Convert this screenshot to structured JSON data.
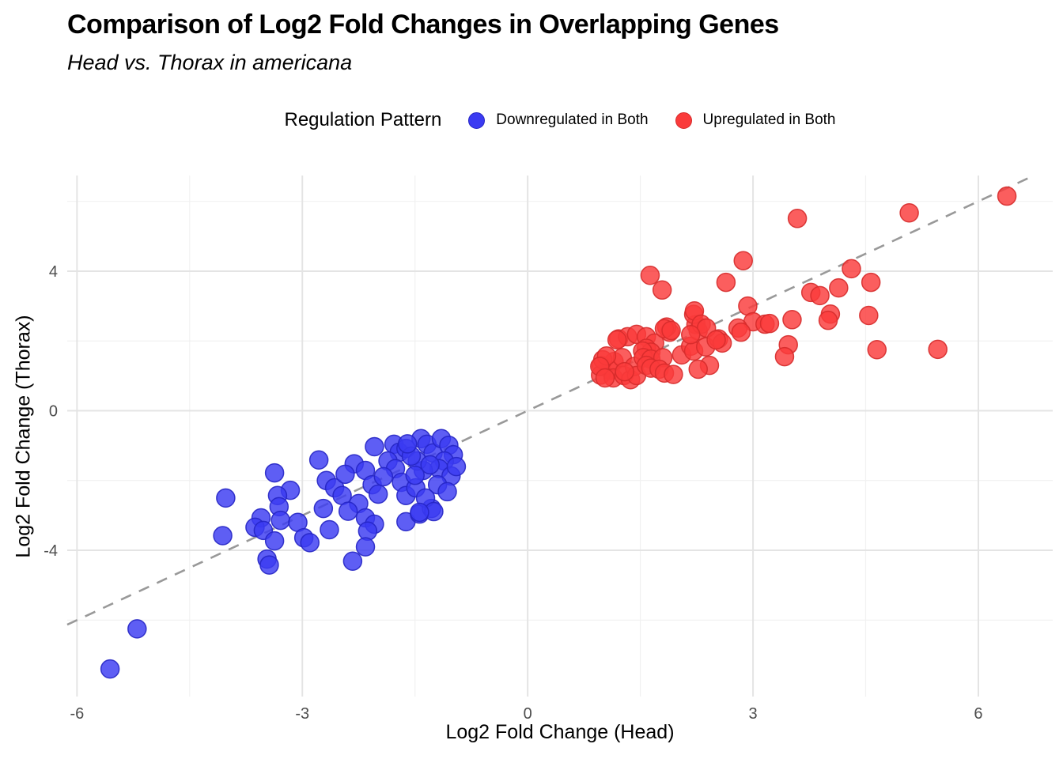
{
  "header": {
    "title": "Comparison of Log2 Fold Changes in Overlapping Genes",
    "subtitle": "Head vs. Thorax in americana"
  },
  "legend": {
    "title": "Regulation Pattern",
    "items": [
      {
        "label": "Downregulated in Both",
        "color": "#3B3BF2",
        "stroke": "#2525C4"
      },
      {
        "label": "Upregulated in Both",
        "color": "#FA3B3B",
        "stroke": "#D62B2B"
      }
    ]
  },
  "chart_data": {
    "type": "scatter",
    "title": "Comparison of Log2 Fold Changes in Overlapping Genes",
    "subtitle": "Head vs. Thorax in americana",
    "xlabel": "Log2 Fold Change (Head)",
    "ylabel": "Log2 Fold Change (Thorax)",
    "xlim": [
      -6.13,
      6.99
    ],
    "ylim": [
      -8.19,
      6.74
    ],
    "x_ticks": [
      -6,
      -3,
      0,
      3,
      6
    ],
    "y_ticks": [
      -4,
      0,
      4
    ],
    "x_minor_ticks": [
      -4.5,
      -1.5,
      1.5,
      4.5
    ],
    "y_minor_ticks": [
      -6,
      -2,
      2,
      6
    ],
    "grid": true,
    "legend_position": "top",
    "reference_line": {
      "type": "identity y = x",
      "style": "dashed",
      "color": "#999999"
    },
    "series": [
      {
        "name": "Downregulated in Both",
        "color": "#3B3BF2",
        "stroke": "#2525C4",
        "points": [
          [
            -5.56,
            -7.4
          ],
          [
            -5.2,
            -6.25
          ],
          [
            -4.02,
            -2.5
          ],
          [
            -4.06,
            -3.58
          ],
          [
            -3.37,
            -1.78
          ],
          [
            -3.16,
            -2.28
          ],
          [
            -3.33,
            -2.43
          ],
          [
            -3.31,
            -2.75
          ],
          [
            -3.55,
            -3.07
          ],
          [
            -3.63,
            -3.34
          ],
          [
            -3.52,
            -3.43
          ],
          [
            -3.29,
            -3.14
          ],
          [
            -3.06,
            -3.2
          ],
          [
            -3.37,
            -3.73
          ],
          [
            -3.47,
            -4.25
          ],
          [
            -3.44,
            -4.42
          ],
          [
            -2.78,
            -1.41
          ],
          [
            -2.68,
            -2.0
          ],
          [
            -2.98,
            -3.64
          ],
          [
            -2.9,
            -3.78
          ],
          [
            -2.72,
            -2.8
          ],
          [
            -2.64,
            -3.41
          ],
          [
            -2.57,
            -2.21
          ],
          [
            -2.47,
            -2.43
          ],
          [
            -2.04,
            -1.03
          ],
          [
            -2.31,
            -1.52
          ],
          [
            -2.43,
            -1.82
          ],
          [
            -2.16,
            -1.71
          ],
          [
            -2.07,
            -2.12
          ],
          [
            -1.99,
            -2.39
          ],
          [
            -2.25,
            -2.66
          ],
          [
            -2.39,
            -2.88
          ],
          [
            -2.16,
            -3.07
          ],
          [
            -2.04,
            -3.25
          ],
          [
            -2.13,
            -3.45
          ],
          [
            -2.16,
            -3.9
          ],
          [
            -2.33,
            -4.31
          ],
          [
            -1.78,
            -0.96
          ],
          [
            -1.71,
            -1.19
          ],
          [
            -1.62,
            -1.08
          ],
          [
            -1.86,
            -1.44
          ],
          [
            -1.76,
            -1.66
          ],
          [
            -1.92,
            -1.89
          ],
          [
            -1.68,
            -2.05
          ],
          [
            -1.62,
            -2.43
          ],
          [
            -1.49,
            -2.21
          ],
          [
            -1.62,
            -3.18
          ],
          [
            -1.44,
            -2.96
          ],
          [
            -1.28,
            -2.8
          ],
          [
            -1.42,
            -0.8
          ],
          [
            -1.34,
            -0.96
          ],
          [
            -1.26,
            -1.21
          ],
          [
            -1.15,
            -0.8
          ],
          [
            -1.05,
            -0.99
          ],
          [
            -0.99,
            -1.26
          ],
          [
            -1.11,
            -1.44
          ],
          [
            -1.18,
            -1.66
          ],
          [
            -1.02,
            -1.87
          ],
          [
            -0.95,
            -1.6
          ],
          [
            -1.2,
            -2.12
          ],
          [
            -1.07,
            -2.32
          ],
          [
            -1.39,
            -1.71
          ],
          [
            -1.47,
            -1.44
          ],
          [
            -1.36,
            -2.5
          ],
          [
            -1.25,
            -2.89
          ],
          [
            -1.44,
            -2.91
          ],
          [
            -1.55,
            -1.3
          ],
          [
            -1.3,
            -1.55
          ],
          [
            -1.6,
            -0.95
          ],
          [
            -1.5,
            -1.85
          ]
        ]
      },
      {
        "name": "Upregulated in Both",
        "color": "#FA3B3B",
        "stroke": "#D62B2B",
        "points": [
          [
            0.98,
            1.3
          ],
          [
            1.1,
            1.16
          ],
          [
            0.97,
            1.02
          ],
          [
            1.15,
            1.41
          ],
          [
            1.26,
            1.52
          ],
          [
            1.14,
            0.94
          ],
          [
            1.28,
            1.01
          ],
          [
            1.0,
            1.46
          ],
          [
            1.05,
            1.57
          ],
          [
            0.96,
            1.27
          ],
          [
            1.03,
            0.94
          ],
          [
            1.37,
            0.89
          ],
          [
            1.42,
            1.27
          ],
          [
            1.45,
            1.01
          ],
          [
            1.29,
            1.12
          ],
          [
            1.21,
            2.06
          ],
          [
            1.33,
            2.12
          ],
          [
            1.45,
            2.19
          ],
          [
            1.19,
            2.03
          ],
          [
            1.58,
            2.12
          ],
          [
            1.69,
            1.94
          ],
          [
            1.58,
            1.79
          ],
          [
            1.64,
            1.68
          ],
          [
            1.53,
            1.71
          ],
          [
            1.54,
            1.52
          ],
          [
            1.64,
            1.48
          ],
          [
            1.8,
            1.52
          ],
          [
            1.58,
            1.3
          ],
          [
            1.64,
            1.22
          ],
          [
            1.75,
            1.19
          ],
          [
            1.82,
            1.08
          ],
          [
            1.94,
            1.04
          ],
          [
            1.89,
            2.25
          ],
          [
            1.85,
            2.4
          ],
          [
            2.05,
            1.6
          ],
          [
            2.17,
            1.85
          ],
          [
            2.21,
            1.71
          ],
          [
            2.24,
            2.47
          ],
          [
            2.27,
            2.29
          ],
          [
            2.37,
            1.83
          ],
          [
            2.42,
            1.3
          ],
          [
            2.27,
            1.19
          ],
          [
            2.54,
            2.06
          ],
          [
            2.59,
            1.94
          ],
          [
            2.21,
            2.76
          ],
          [
            1.82,
            2.35
          ],
          [
            1.63,
            3.88
          ],
          [
            1.79,
            3.46
          ],
          [
            2.87,
            4.3
          ],
          [
            2.64,
            3.68
          ],
          [
            2.22,
            2.86
          ],
          [
            2.93,
            3.0
          ],
          [
            3.0,
            2.55
          ],
          [
            2.31,
            2.48
          ],
          [
            2.38,
            2.37
          ],
          [
            1.91,
            2.3
          ],
          [
            2.17,
            2.18
          ],
          [
            2.51,
            2.03
          ],
          [
            2.8,
            2.37
          ],
          [
            2.84,
            2.25
          ],
          [
            3.16,
            2.48
          ],
          [
            3.59,
            5.51
          ],
          [
            5.08,
            5.67
          ],
          [
            4.31,
            4.07
          ],
          [
            4.57,
            3.68
          ],
          [
            3.22,
            2.5
          ],
          [
            3.52,
            2.61
          ],
          [
            3.77,
            3.39
          ],
          [
            3.89,
            3.3
          ],
          [
            4.14,
            3.52
          ],
          [
            4.03,
            2.77
          ],
          [
            4.0,
            2.59
          ],
          [
            4.54,
            2.73
          ],
          [
            3.47,
            1.89
          ],
          [
            3.42,
            1.55
          ],
          [
            4.65,
            1.75
          ],
          [
            6.38,
            6.15
          ],
          [
            5.46,
            1.76
          ]
        ]
      }
    ],
    "style": {
      "grid_major_color": "#E4E4E4",
      "grid_minor_color": "#F1F1F1",
      "tick_label_color": "#4D4D4D",
      "point_radius": 11.5,
      "background": "#FFFFFF"
    }
  }
}
